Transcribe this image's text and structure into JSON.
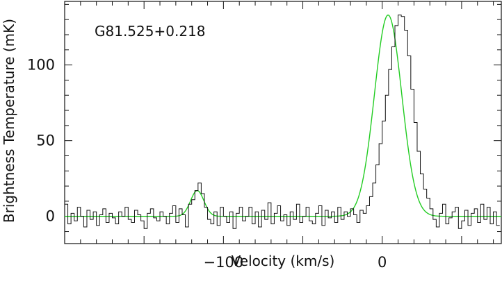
{
  "chart_data": {
    "type": "line",
    "annotation": "G81.525+0.218",
    "xlabel": "Velocity (km/s)",
    "ylabel": "Brightness Temperature (mK)",
    "xlim": [
      -200,
      75
    ],
    "ylim": [
      -18,
      142
    ],
    "x_ticks": [
      {
        "value": -100,
        "label": "−100"
      },
      {
        "value": 0,
        "label": "0"
      }
    ],
    "y_ticks": [
      {
        "value": 0,
        "label": "0"
      },
      {
        "value": 50,
        "label": "50"
      },
      {
        "value": 100,
        "label": "100"
      }
    ],
    "grid": false,
    "colors": {
      "observed": "#111111",
      "fit": "#22cc22",
      "axes": "#111111"
    },
    "series": [
      {
        "style": "step",
        "x": [
          -199,
          -197,
          -195,
          -193,
          -191,
          -189,
          -187,
          -185,
          -183,
          -181,
          -179,
          -177,
          -175,
          -173,
          -171,
          -169,
          -167,
          -165,
          -163,
          -161,
          -159,
          -157,
          -155,
          -153,
          -151,
          -149,
          -147,
          -145,
          -143,
          -141,
          -139,
          -137,
          -135,
          -133,
          -131,
          -129,
          -127,
          -125,
          -123,
          -121,
          -119,
          -117,
          -115,
          -113,
          -111,
          -109,
          -107,
          -105,
          -103,
          -101,
          -99,
          -97,
          -95,
          -93,
          -91,
          -89,
          -87,
          -85,
          -83,
          -81,
          -79,
          -77,
          -75,
          -73,
          -71,
          -69,
          -67,
          -65,
          -63,
          -61,
          -59,
          -57,
          -55,
          -53,
          -51,
          -49,
          -47,
          -45,
          -43,
          -41,
          -39,
          -37,
          -35,
          -33,
          -31,
          -29,
          -27,
          -25,
          -23,
          -21,
          -19,
          -17,
          -15,
          -13,
          -11,
          -9,
          -7,
          -5,
          -3,
          -1,
          1,
          3,
          5,
          7,
          9,
          11,
          13,
          15,
          17,
          19,
          21,
          23,
          25,
          27,
          29,
          31,
          33,
          35,
          37,
          39,
          41,
          43,
          45,
          47,
          49,
          51,
          53,
          55,
          57,
          59,
          61,
          63,
          65,
          67,
          69,
          71,
          73
        ],
        "y": [
          8,
          -5,
          2,
          -3,
          6,
          0,
          -7,
          4,
          -2,
          3,
          -6,
          1,
          5,
          -4,
          2,
          -1,
          -5,
          3,
          0,
          6,
          -2,
          -4,
          4,
          1,
          -3,
          -8,
          2,
          5,
          -1,
          -3,
          3,
          0,
          -5,
          2,
          7,
          -4,
          5,
          1,
          -7,
          8,
          11,
          17,
          22,
          15,
          6,
          -2,
          -5,
          3,
          -6,
          6,
          0,
          -4,
          3,
          -8,
          2,
          6,
          -3,
          0,
          6,
          -5,
          3,
          -7,
          4,
          -2,
          9,
          -5,
          2,
          7,
          -3,
          1,
          -6,
          3,
          -2,
          8,
          -4,
          0,
          6,
          -3,
          -5,
          2,
          7,
          -6,
          4,
          -1,
          3,
          -4,
          6,
          -2,
          3,
          0,
          5,
          1,
          -4,
          4,
          2,
          7,
          13,
          22,
          34,
          48,
          63,
          80,
          97,
          112,
          126,
          133,
          132,
          123,
          106,
          84,
          62,
          43,
          28,
          18,
          12,
          5,
          -2,
          -7,
          2,
          8,
          -5,
          -1,
          3,
          6,
          -8,
          -3,
          4,
          -6,
          2,
          5,
          -4,
          8,
          -2,
          6,
          -5,
          3,
          -6
        ]
      },
      {
        "style": "smooth",
        "components": [
          {
            "amplitude": 17,
            "center": -116.5,
            "sigma": 4.2
          },
          {
            "amplitude": 133,
            "center": 3.7,
            "sigma": 8.6
          }
        ]
      }
    ]
  }
}
